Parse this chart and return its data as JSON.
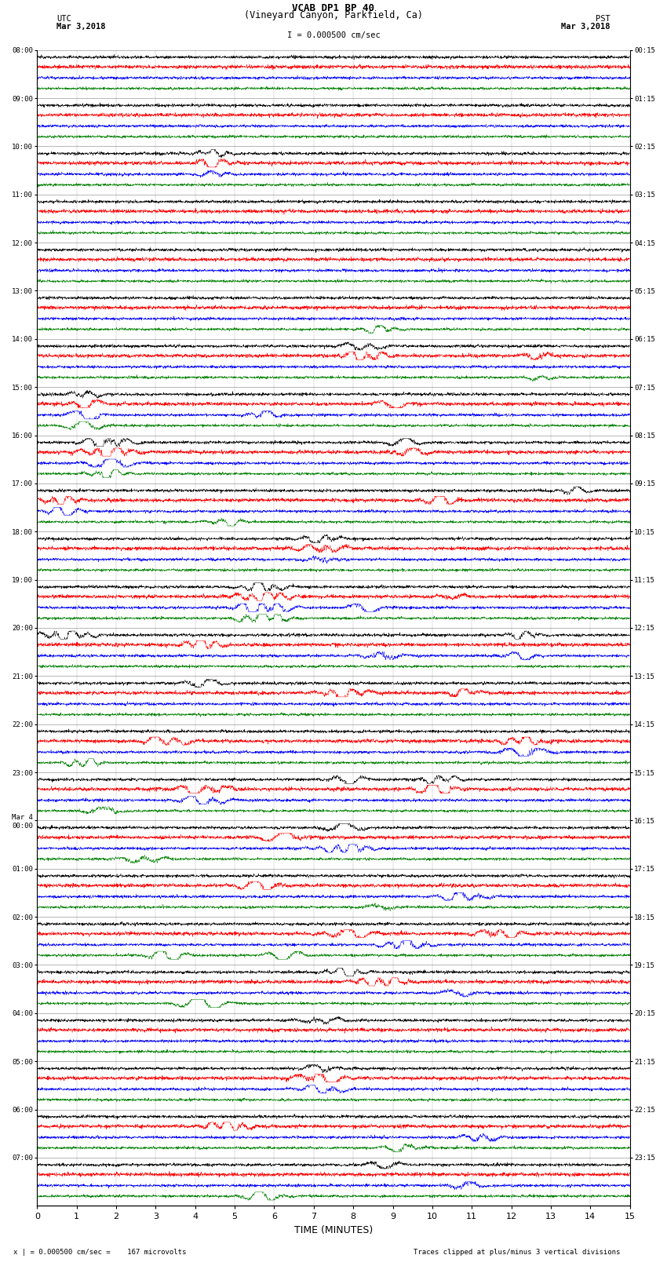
{
  "title_line1": "VCAB DP1 BP 40",
  "title_line2": "(Vineyard Canyon, Parkfield, Ca)",
  "scale_label": "I = 0.000500 cm/sec",
  "utc_label": "UTC",
  "utc_date": "Mar 3,2018",
  "pst_label": "PST",
  "pst_date": "Mar 3,2018",
  "bottom_left": "x | = 0.000500 cm/sec =    167 microvolts",
  "bottom_right": "Traces clipped at plus/minus 3 vertical divisions",
  "xlabel": "TIME (MINUTES)",
  "utc_times": [
    "08:00",
    "09:00",
    "10:00",
    "11:00",
    "12:00",
    "13:00",
    "14:00",
    "15:00",
    "16:00",
    "17:00",
    "18:00",
    "19:00",
    "20:00",
    "21:00",
    "22:00",
    "23:00",
    "Mar 4\n00:00",
    "01:00",
    "02:00",
    "03:00",
    "04:00",
    "05:00",
    "06:00",
    "07:00"
  ],
  "pst_times": [
    "00:15",
    "01:15",
    "02:15",
    "03:15",
    "04:15",
    "05:15",
    "06:15",
    "07:15",
    "08:15",
    "09:15",
    "10:15",
    "11:15",
    "12:15",
    "13:15",
    "14:15",
    "15:15",
    "16:15",
    "17:15",
    "18:15",
    "19:15",
    "20:15",
    "21:15",
    "22:15",
    "23:15"
  ],
  "trace_colors": [
    "black",
    "red",
    "blue",
    "green"
  ],
  "bg_color": "white",
  "n_hours": 24,
  "traces_per_hour": 4,
  "noise_amplitude": 0.12,
  "clip_value": 0.38,
  "trace_scale": 0.22,
  "n_points": 3000,
  "events": [
    [
      2,
      1,
      0.3,
      0.8,
      0.018
    ],
    [
      2,
      0,
      0.3,
      0.5,
      0.02
    ],
    [
      2,
      2,
      0.3,
      0.4,
      0.018
    ],
    [
      5,
      3,
      0.58,
      0.6,
      0.02
    ],
    [
      6,
      1,
      0.55,
      0.9,
      0.025
    ],
    [
      6,
      0,
      0.55,
      0.6,
      0.022
    ],
    [
      6,
      1,
      0.85,
      0.7,
      0.018
    ],
    [
      6,
      3,
      0.85,
      0.5,
      0.015
    ],
    [
      7,
      2,
      0.08,
      0.85,
      0.022
    ],
    [
      7,
      1,
      0.08,
      0.75,
      0.02
    ],
    [
      7,
      3,
      0.08,
      0.65,
      0.02
    ],
    [
      7,
      0,
      0.08,
      0.55,
      0.018
    ],
    [
      7,
      2,
      0.38,
      0.6,
      0.018
    ],
    [
      7,
      1,
      0.6,
      0.5,
      0.018
    ],
    [
      8,
      0,
      0.12,
      0.9,
      0.025
    ],
    [
      8,
      1,
      0.12,
      1.0,
      0.028
    ],
    [
      8,
      2,
      0.12,
      0.85,
      0.025
    ],
    [
      8,
      3,
      0.12,
      0.75,
      0.022
    ],
    [
      8,
      1,
      0.62,
      0.7,
      0.022
    ],
    [
      8,
      0,
      0.62,
      0.5,
      0.018
    ],
    [
      9,
      2,
      0.04,
      0.7,
      0.022
    ],
    [
      9,
      1,
      0.04,
      0.65,
      0.02
    ],
    [
      9,
      3,
      0.32,
      0.6,
      0.02
    ],
    [
      9,
      1,
      0.68,
      0.75,
      0.022
    ],
    [
      9,
      0,
      0.9,
      0.55,
      0.018
    ],
    [
      10,
      0,
      0.48,
      0.65,
      0.022
    ],
    [
      10,
      1,
      0.48,
      0.75,
      0.025
    ],
    [
      10,
      2,
      0.48,
      0.7,
      0.022
    ],
    [
      11,
      2,
      0.38,
      1.0,
      0.03
    ],
    [
      11,
      3,
      0.38,
      0.85,
      0.028
    ],
    [
      11,
      0,
      0.38,
      0.75,
      0.025
    ],
    [
      11,
      1,
      0.38,
      0.9,
      0.028
    ],
    [
      11,
      2,
      0.55,
      0.65,
      0.02
    ],
    [
      11,
      1,
      0.7,
      0.6,
      0.02
    ],
    [
      12,
      0,
      0.05,
      0.7,
      0.03
    ],
    [
      12,
      1,
      0.28,
      0.75,
      0.022
    ],
    [
      12,
      2,
      0.58,
      0.85,
      0.025
    ],
    [
      12,
      0,
      0.82,
      0.6,
      0.022
    ],
    [
      12,
      2,
      0.82,
      0.55,
      0.02
    ],
    [
      13,
      0,
      0.28,
      0.65,
      0.022
    ],
    [
      13,
      1,
      0.52,
      0.8,
      0.025
    ],
    [
      13,
      1,
      0.72,
      0.65,
      0.02
    ],
    [
      14,
      1,
      0.22,
      0.8,
      0.025
    ],
    [
      14,
      3,
      0.08,
      0.65,
      0.02
    ],
    [
      14,
      2,
      0.82,
      0.9,
      0.028
    ],
    [
      14,
      1,
      0.82,
      0.75,
      0.025
    ],
    [
      15,
      1,
      0.28,
      0.9,
      0.028
    ],
    [
      15,
      2,
      0.28,
      0.8,
      0.025
    ],
    [
      15,
      3,
      0.12,
      0.7,
      0.022
    ],
    [
      15,
      0,
      0.52,
      0.65,
      0.022
    ],
    [
      15,
      1,
      0.68,
      0.85,
      0.028
    ],
    [
      15,
      0,
      0.68,
      0.65,
      0.022
    ],
    [
      16,
      3,
      0.18,
      0.65,
      0.022
    ],
    [
      16,
      1,
      0.42,
      0.8,
      0.025
    ],
    [
      16,
      2,
      0.52,
      0.85,
      0.028
    ],
    [
      16,
      0,
      0.52,
      0.65,
      0.022
    ],
    [
      17,
      1,
      0.38,
      0.85,
      0.025
    ],
    [
      17,
      3,
      0.58,
      0.65,
      0.022
    ],
    [
      17,
      2,
      0.72,
      0.75,
      0.025
    ],
    [
      18,
      3,
      0.22,
      0.7,
      0.022
    ],
    [
      18,
      3,
      0.42,
      0.65,
      0.02
    ],
    [
      18,
      1,
      0.52,
      0.85,
      0.028
    ],
    [
      18,
      2,
      0.62,
      0.8,
      0.025
    ],
    [
      18,
      1,
      0.78,
      0.8,
      0.025
    ],
    [
      19,
      3,
      0.28,
      0.8,
      0.025
    ],
    [
      19,
      0,
      0.52,
      0.7,
      0.022
    ],
    [
      19,
      1,
      0.58,
      0.85,
      0.028
    ],
    [
      19,
      2,
      0.72,
      0.65,
      0.022
    ],
    [
      20,
      0,
      0.48,
      0.65,
      0.022
    ],
    [
      21,
      1,
      0.48,
      0.9,
      0.03
    ],
    [
      21,
      2,
      0.48,
      0.75,
      0.025
    ],
    [
      21,
      0,
      0.48,
      0.55,
      0.02
    ],
    [
      22,
      1,
      0.32,
      0.8,
      0.025
    ],
    [
      22,
      3,
      0.62,
      0.65,
      0.022
    ],
    [
      22,
      2,
      0.75,
      0.6,
      0.02
    ],
    [
      23,
      3,
      0.38,
      0.7,
      0.025
    ],
    [
      23,
      0,
      0.58,
      0.65,
      0.022
    ],
    [
      23,
      2,
      0.72,
      0.6,
      0.02
    ]
  ]
}
